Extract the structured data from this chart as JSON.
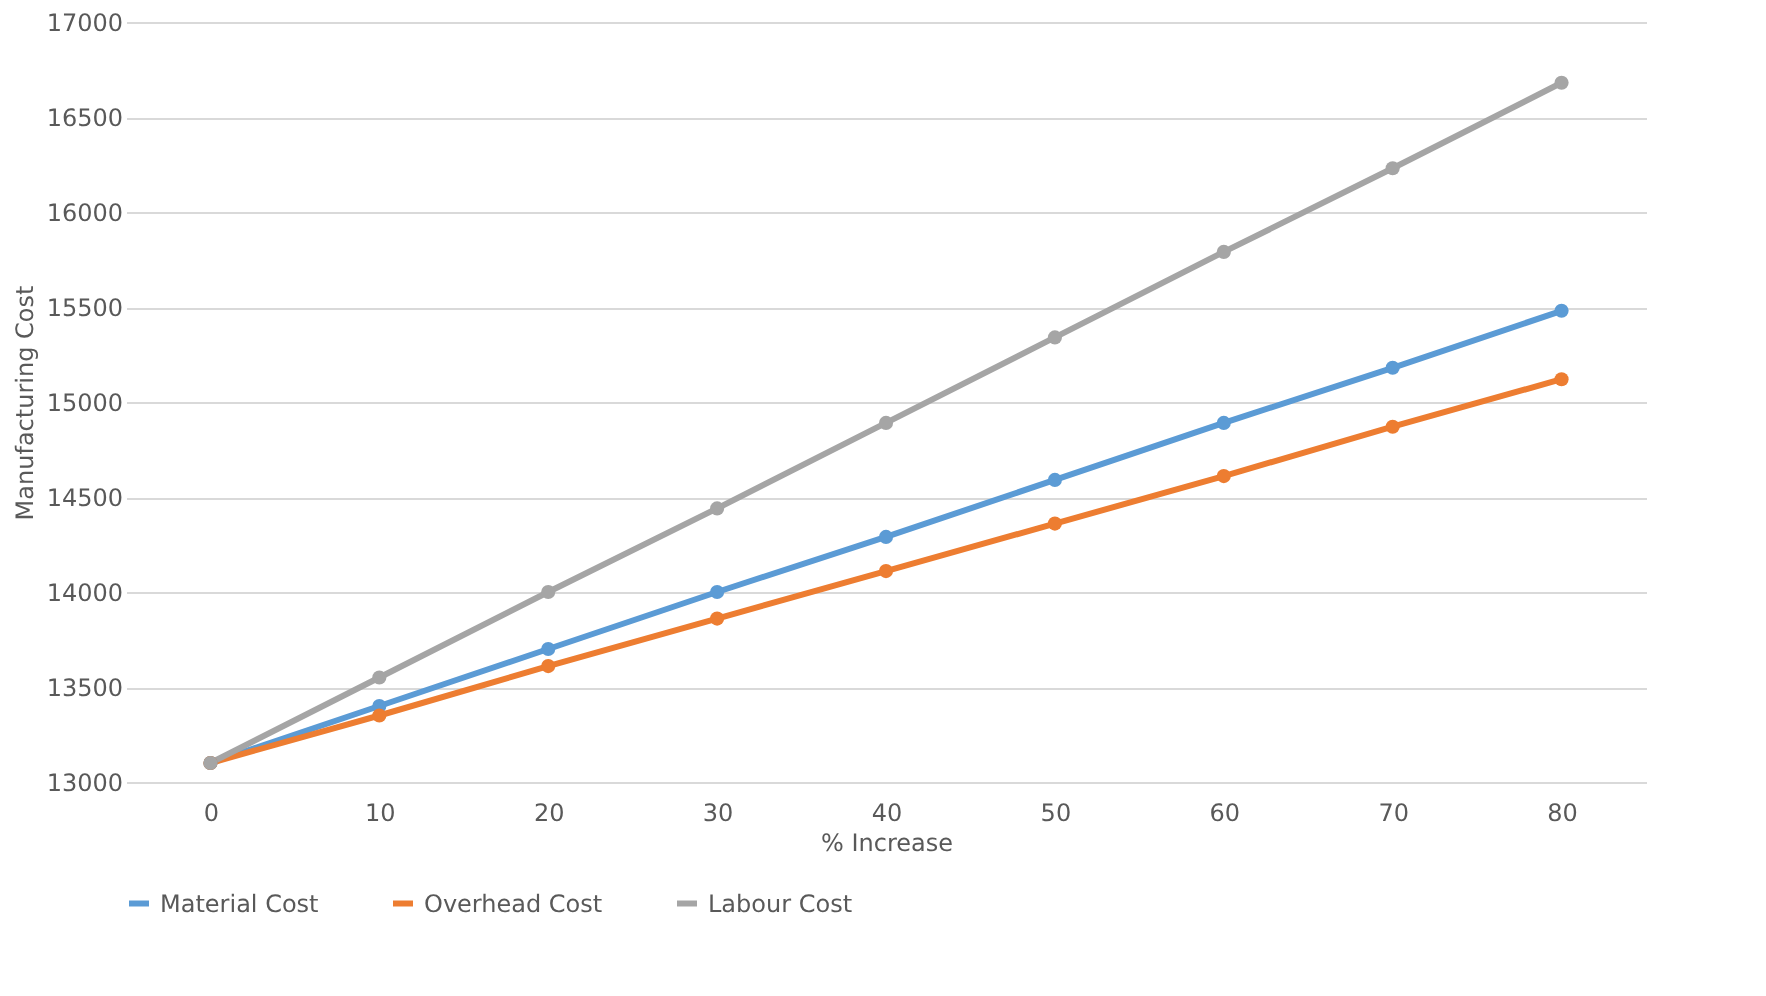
{
  "chart_data": {
    "type": "line",
    "xlabel": "% Increase",
    "ylabel": "Manufacturing Cost",
    "categories": [
      "0",
      "10",
      "20",
      "30",
      "40",
      "50",
      "60",
      "70",
      "80"
    ],
    "series": [
      {
        "name": "Material Cost",
        "color": "#5b9bd5",
        "values": [
          13100,
          13400,
          13700,
          14000,
          14290,
          14590,
          14890,
          15180,
          15480
        ]
      },
      {
        "name": "Overhead Cost",
        "color": "#ed7d31",
        "values": [
          13100,
          13350,
          13610,
          13860,
          14110,
          14360,
          14610,
          14870,
          15120
        ]
      },
      {
        "name": "Labour Cost",
        "color": "#a5a5a5",
        "values": [
          13100,
          13550,
          14000,
          14440,
          14890,
          15340,
          15790,
          16230,
          16680
        ]
      }
    ],
    "ylim": [
      13000,
      17000
    ],
    "yticks": [
      13000,
      13500,
      14000,
      14500,
      15000,
      15500,
      16000,
      16500,
      17000
    ],
    "grid": "y",
    "legend": "bottom",
    "marker": "circle",
    "line_style": "solid"
  }
}
